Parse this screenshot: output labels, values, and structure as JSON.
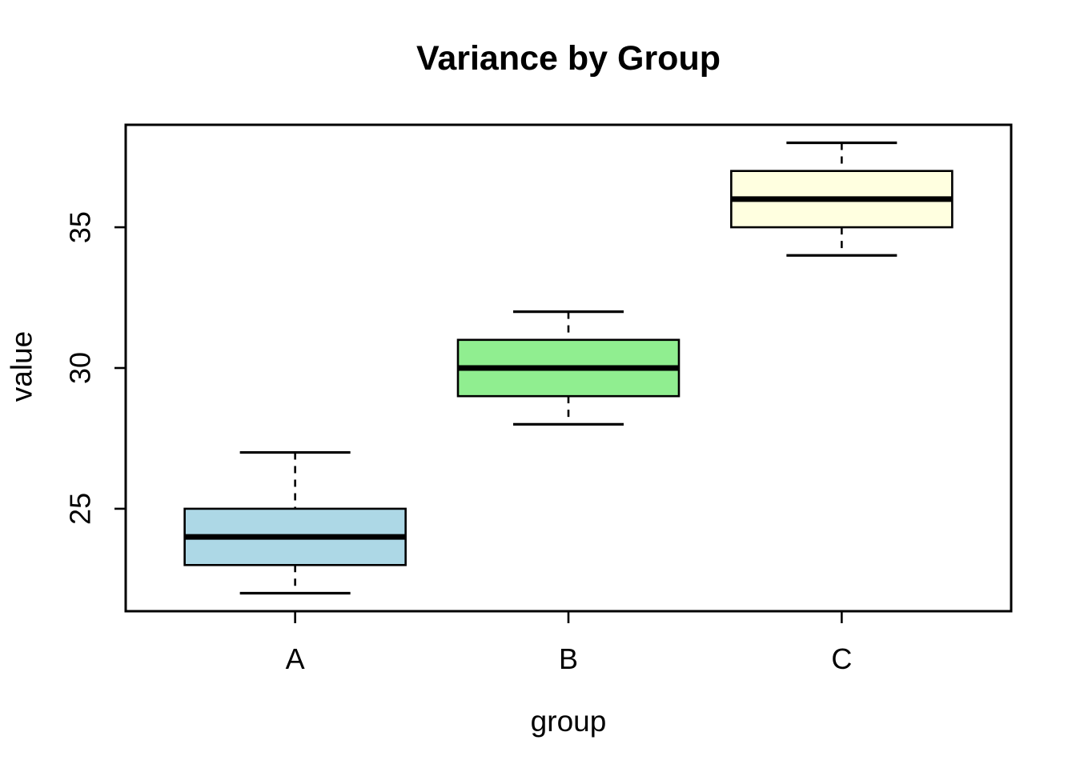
{
  "figure": {
    "background_color": "#ffffff",
    "foreground_color": "#000000"
  },
  "chart_data": {
    "type": "boxplot",
    "title": "Variance by Group",
    "xlabel": "group",
    "ylabel": "value",
    "categories": [
      "A",
      "B",
      "C"
    ],
    "series": [
      {
        "name": "A",
        "min": 22,
        "q1": 23,
        "median": 24,
        "q3": 25,
        "max": 27,
        "fill": "#add8e6"
      },
      {
        "name": "B",
        "min": 28,
        "q1": 29,
        "median": 30,
        "q3": 31,
        "max": 32,
        "fill": "#90ee90"
      },
      {
        "name": "C",
        "min": 34,
        "q1": 35,
        "median": 36,
        "q3": 37,
        "max": 38,
        "fill": "#ffffe0"
      }
    ],
    "y_ticks": [
      25,
      30,
      35
    ],
    "ylim": [
      21.36,
      38.64
    ],
    "grid": false,
    "legend": "none",
    "whisker_line_style": "dashed",
    "box_border_color": "#000000",
    "median_color": "#000000"
  }
}
